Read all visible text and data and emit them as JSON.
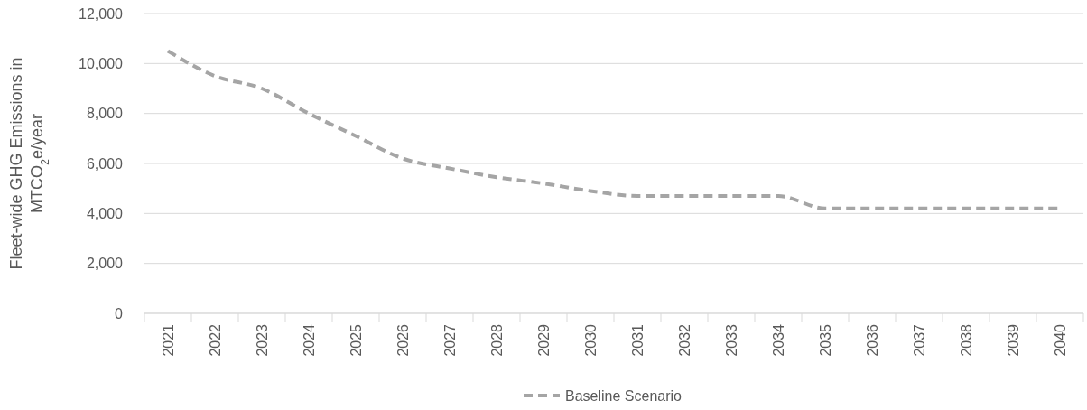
{
  "chart_data": {
    "type": "line",
    "ylabel": "Fleet-wide GHG Emissions in MTCO$_{2}$e/year",
    "categories": [
      "2021",
      "2022",
      "2023",
      "2024",
      "2025",
      "2026",
      "2027",
      "2028",
      "2029",
      "2030",
      "2031",
      "2032",
      "2033",
      "2034",
      "2035",
      "2036",
      "2037",
      "2038",
      "2039",
      "2040"
    ],
    "series": [
      {
        "name": "Baseline Scenario",
        "color": "#a5a5a5",
        "values": [
          10500,
          9500,
          9000,
          8000,
          7100,
          6200,
          5800,
          5450,
          5200,
          4900,
          4700,
          4700,
          4700,
          4700,
          4200,
          4200,
          4200,
          4200,
          4200,
          4200
        ]
      }
    ],
    "ylim": [
      0,
      12000
    ],
    "yticks": [
      {
        "value": 0,
        "label": "0"
      },
      {
        "value": 2000,
        "label": "2,000"
      },
      {
        "value": 4000,
        "label": "4,000"
      },
      {
        "value": 6000,
        "label": "6,000"
      },
      {
        "value": 8000,
        "label": "8,000"
      },
      {
        "value": 10000,
        "label": "10,000"
      },
      {
        "value": 12000,
        "label": "12,000"
      }
    ],
    "grid": "y",
    "legend": "bottom",
    "line_style": "dashed",
    "marker": "none"
  }
}
